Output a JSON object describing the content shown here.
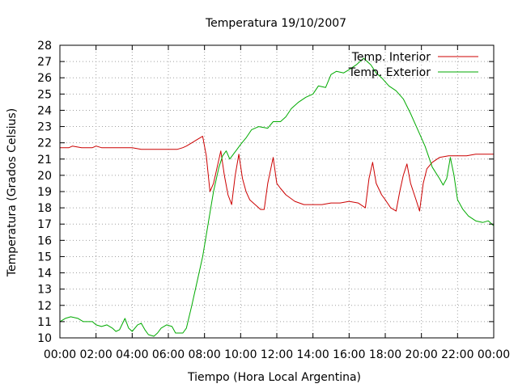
{
  "chart_data": {
    "type": "line",
    "title": "Temperatura 19/10/2007",
    "xlabel": "Tiempo (Hora Local Argentina)",
    "ylabel": "Temperatura (Grados Celsius)",
    "xlim": [
      0,
      24
    ],
    "ylim": [
      10,
      28
    ],
    "grid": true,
    "legend_position": "top-right",
    "x_ticks": [
      {
        "value": 0,
        "label": "00:00"
      },
      {
        "value": 2,
        "label": "02:00"
      },
      {
        "value": 4,
        "label": "04:00"
      },
      {
        "value": 6,
        "label": "06:00"
      },
      {
        "value": 8,
        "label": "08:00"
      },
      {
        "value": 10,
        "label": "10:00"
      },
      {
        "value": 12,
        "label": "12:00"
      },
      {
        "value": 14,
        "label": "14:00"
      },
      {
        "value": 16,
        "label": "16:00"
      },
      {
        "value": 18,
        "label": "18:00"
      },
      {
        "value": 20,
        "label": "20:00"
      },
      {
        "value": 22,
        "label": "22:00"
      },
      {
        "value": 24,
        "label": "00:00"
      }
    ],
    "y_ticks": [
      10,
      11,
      12,
      13,
      14,
      15,
      16,
      17,
      18,
      19,
      20,
      21,
      22,
      23,
      24,
      25,
      26,
      27,
      28
    ],
    "series": [
      {
        "name": "Temp. Interior",
        "color": "#cc0000",
        "points": [
          [
            0,
            21.7
          ],
          [
            0.5,
            21.7
          ],
          [
            0.7,
            21.8
          ],
          [
            1.2,
            21.7
          ],
          [
            1.8,
            21.7
          ],
          [
            2.0,
            21.8
          ],
          [
            2.3,
            21.7
          ],
          [
            3.0,
            21.7
          ],
          [
            4.0,
            21.7
          ],
          [
            4.5,
            21.6
          ],
          [
            5.0,
            21.6
          ],
          [
            5.5,
            21.6
          ],
          [
            6.0,
            21.6
          ],
          [
            6.5,
            21.6
          ],
          [
            6.8,
            21.7
          ],
          [
            7.0,
            21.8
          ],
          [
            7.3,
            22.0
          ],
          [
            7.6,
            22.2
          ],
          [
            7.9,
            22.4
          ],
          [
            8.1,
            21.2
          ],
          [
            8.3,
            19.0
          ],
          [
            8.5,
            19.5
          ],
          [
            8.7,
            20.5
          ],
          [
            8.9,
            21.5
          ],
          [
            9.1,
            20.0
          ],
          [
            9.3,
            18.8
          ],
          [
            9.5,
            18.2
          ],
          [
            9.7,
            20.0
          ],
          [
            9.9,
            21.3
          ],
          [
            10.1,
            19.8
          ],
          [
            10.3,
            19.0
          ],
          [
            10.5,
            18.5
          ],
          [
            10.8,
            18.2
          ],
          [
            11.1,
            17.9
          ],
          [
            11.3,
            17.9
          ],
          [
            11.5,
            19.5
          ],
          [
            11.8,
            21.1
          ],
          [
            12.0,
            19.5
          ],
          [
            12.2,
            19.2
          ],
          [
            12.5,
            18.8
          ],
          [
            13.0,
            18.4
          ],
          [
            13.5,
            18.2
          ],
          [
            14.0,
            18.2
          ],
          [
            14.5,
            18.2
          ],
          [
            15.0,
            18.3
          ],
          [
            15.5,
            18.3
          ],
          [
            16.0,
            18.4
          ],
          [
            16.5,
            18.3
          ],
          [
            16.9,
            18.0
          ],
          [
            17.1,
            19.8
          ],
          [
            17.3,
            20.8
          ],
          [
            17.5,
            19.5
          ],
          [
            17.8,
            18.8
          ],
          [
            18.0,
            18.5
          ],
          [
            18.3,
            18.0
          ],
          [
            18.6,
            17.8
          ],
          [
            18.8,
            19.0
          ],
          [
            19.0,
            20.0
          ],
          [
            19.2,
            20.7
          ],
          [
            19.4,
            19.5
          ],
          [
            19.7,
            18.5
          ],
          [
            19.9,
            17.8
          ],
          [
            20.1,
            19.5
          ],
          [
            20.3,
            20.4
          ],
          [
            20.6,
            20.8
          ],
          [
            21.0,
            21.1
          ],
          [
            21.5,
            21.2
          ],
          [
            22.0,
            21.2
          ],
          [
            22.5,
            21.2
          ],
          [
            23.0,
            21.3
          ],
          [
            23.5,
            21.3
          ],
          [
            24.0,
            21.3
          ]
        ]
      },
      {
        "name": "Temp. Exterior",
        "color": "#00aa00",
        "points": [
          [
            0,
            11.0
          ],
          [
            0.3,
            11.2
          ],
          [
            0.6,
            11.3
          ],
          [
            1.0,
            11.2
          ],
          [
            1.3,
            11.0
          ],
          [
            1.8,
            11.0
          ],
          [
            2.0,
            10.8
          ],
          [
            2.3,
            10.7
          ],
          [
            2.6,
            10.8
          ],
          [
            2.9,
            10.6
          ],
          [
            3.1,
            10.4
          ],
          [
            3.3,
            10.5
          ],
          [
            3.6,
            11.2
          ],
          [
            3.8,
            10.6
          ],
          [
            4.0,
            10.4
          ],
          [
            4.3,
            10.8
          ],
          [
            4.5,
            10.9
          ],
          [
            4.7,
            10.5
          ],
          [
            4.9,
            10.2
          ],
          [
            5.2,
            10.1
          ],
          [
            5.4,
            10.3
          ],
          [
            5.6,
            10.6
          ],
          [
            5.9,
            10.8
          ],
          [
            6.2,
            10.7
          ],
          [
            6.4,
            10.3
          ],
          [
            6.8,
            10.3
          ],
          [
            7.0,
            10.6
          ],
          [
            7.3,
            12.0
          ],
          [
            7.6,
            13.5
          ],
          [
            7.9,
            15.0
          ],
          [
            8.2,
            17.0
          ],
          [
            8.5,
            19.0
          ],
          [
            8.8,
            20.5
          ],
          [
            9.0,
            21.2
          ],
          [
            9.2,
            21.5
          ],
          [
            9.4,
            21.0
          ],
          [
            9.6,
            21.3
          ],
          [
            9.8,
            21.6
          ],
          [
            10.0,
            21.9
          ],
          [
            10.3,
            22.3
          ],
          [
            10.6,
            22.8
          ],
          [
            11.0,
            23.0
          ],
          [
            11.5,
            22.9
          ],
          [
            11.8,
            23.3
          ],
          [
            12.2,
            23.3
          ],
          [
            12.5,
            23.6
          ],
          [
            12.8,
            24.1
          ],
          [
            13.2,
            24.5
          ],
          [
            13.6,
            24.8
          ],
          [
            14.0,
            25.0
          ],
          [
            14.3,
            25.5
          ],
          [
            14.7,
            25.4
          ],
          [
            15.0,
            26.2
          ],
          [
            15.3,
            26.4
          ],
          [
            15.7,
            26.3
          ],
          [
            16.0,
            26.5
          ],
          [
            16.4,
            26.8
          ],
          [
            16.8,
            27.2
          ],
          [
            17.2,
            26.8
          ],
          [
            17.5,
            26.3
          ],
          [
            17.8,
            26.0
          ],
          [
            18.2,
            25.5
          ],
          [
            18.6,
            25.2
          ],
          [
            19.0,
            24.7
          ],
          [
            19.4,
            23.8
          ],
          [
            19.8,
            22.8
          ],
          [
            20.2,
            21.8
          ],
          [
            20.6,
            20.5
          ],
          [
            21.0,
            19.8
          ],
          [
            21.2,
            19.4
          ],
          [
            21.4,
            19.8
          ],
          [
            21.6,
            21.1
          ],
          [
            21.8,
            20.0
          ],
          [
            22.0,
            18.5
          ],
          [
            22.3,
            17.9
          ],
          [
            22.6,
            17.5
          ],
          [
            23.0,
            17.2
          ],
          [
            23.4,
            17.1
          ],
          [
            23.7,
            17.2
          ],
          [
            24.0,
            16.9
          ]
        ]
      }
    ]
  }
}
